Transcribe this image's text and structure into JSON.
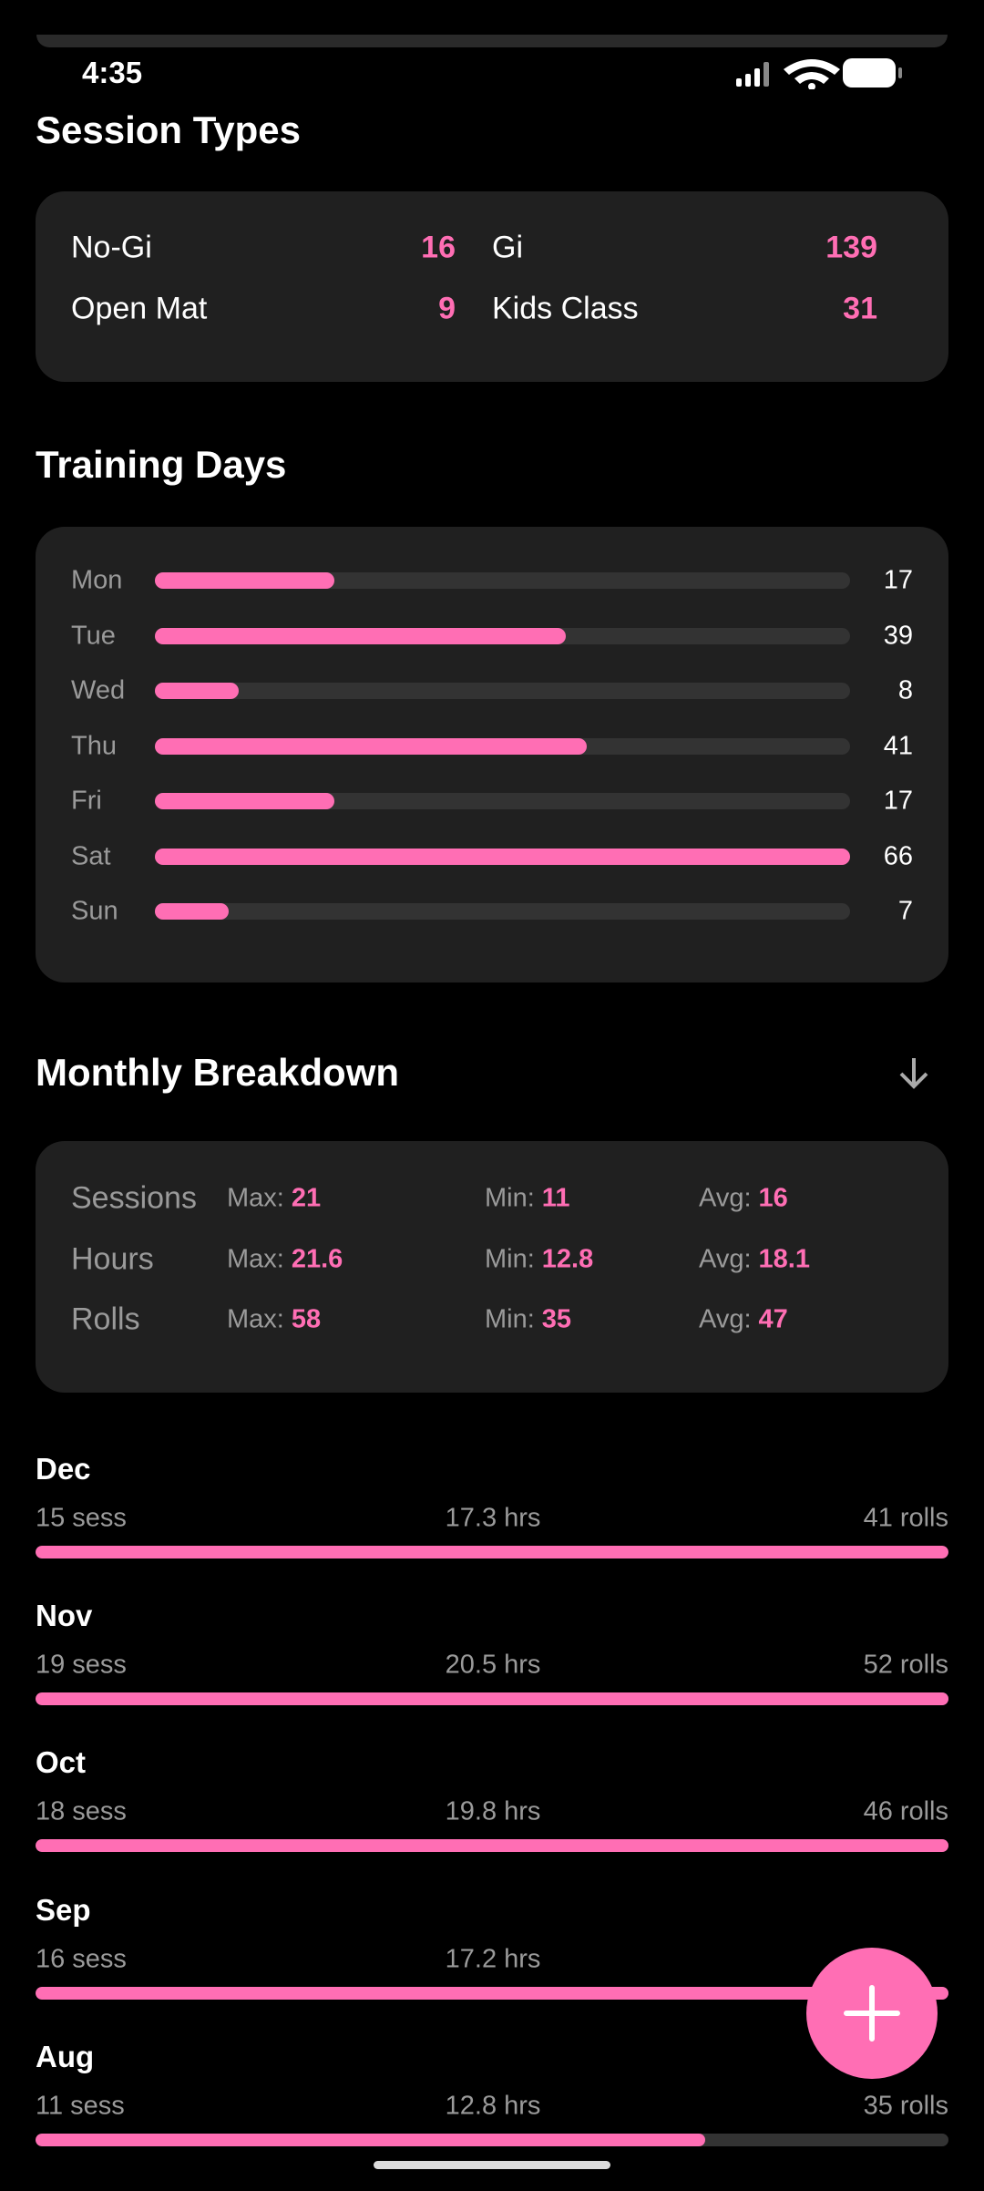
{
  "status_bar": {
    "time": "4:35"
  },
  "session_types": {
    "title": "Session Types",
    "items": [
      {
        "label": "No-Gi",
        "count": 16
      },
      {
        "label": "Gi",
        "count": 139
      },
      {
        "label": "Open Mat",
        "count": 9
      },
      {
        "label": "Kids Class",
        "count": 31
      }
    ]
  },
  "training_days": {
    "title": "Training Days",
    "days": [
      {
        "label": "Mon",
        "count": 17
      },
      {
        "label": "Tue",
        "count": 39
      },
      {
        "label": "Wed",
        "count": 8
      },
      {
        "label": "Thu",
        "count": 41
      },
      {
        "label": "Fri",
        "count": 17
      },
      {
        "label": "Sat",
        "count": 66
      },
      {
        "label": "Sun",
        "count": 7
      }
    ]
  },
  "monthly_breakdown": {
    "title": "Monthly Breakdown",
    "stat_labels": [
      "Max:",
      "Min:",
      "Avg:"
    ],
    "stats": [
      {
        "label": "Sessions",
        "values": [
          21,
          11,
          16
        ]
      },
      {
        "label": "Hours",
        "values": [
          21.6,
          12.8,
          18.1
        ]
      },
      {
        "label": "Rolls",
        "values": [
          58,
          35,
          47
        ]
      }
    ],
    "units": {
      "sessions": "sess",
      "hours": "hrs",
      "rolls": "rolls"
    },
    "months": [
      {
        "month": "Dec",
        "sessions": 15,
        "hours": 17.3,
        "rolls": 41
      },
      {
        "month": "Nov",
        "sessions": 19,
        "hours": 20.5,
        "rolls": 52
      },
      {
        "month": "Oct",
        "sessions": 18,
        "hours": 19.8,
        "rolls": 46
      },
      {
        "month": "Sep",
        "sessions": 16,
        "hours": 17.2
      },
      {
        "month": "Aug",
        "sessions": 11,
        "hours": 12.8,
        "rolls": 35
      }
    ]
  }
}
